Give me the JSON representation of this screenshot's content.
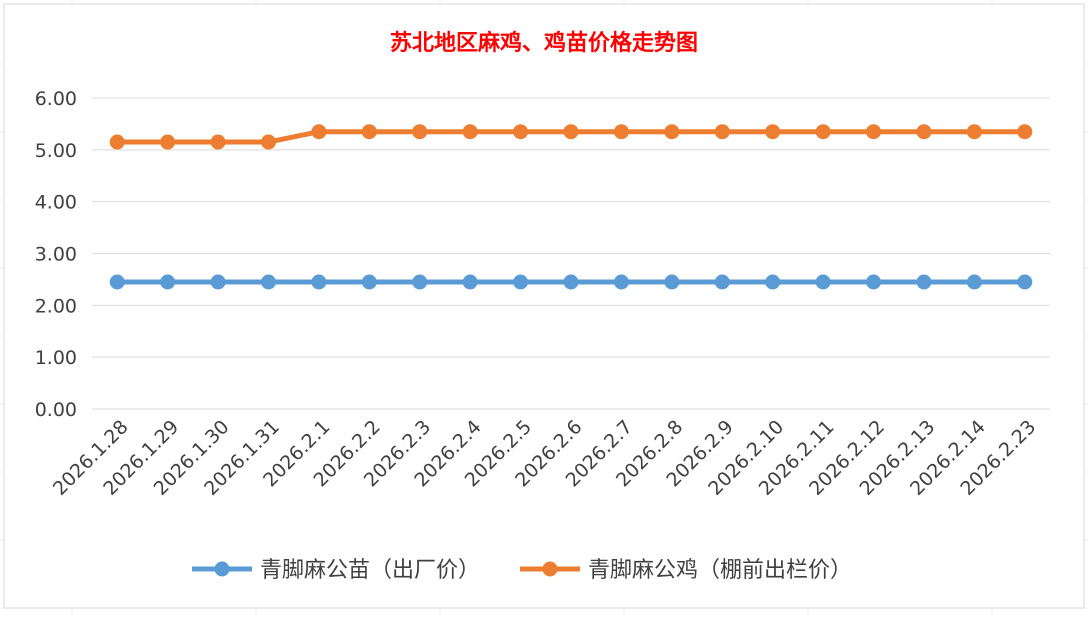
{
  "chart_data": {
    "type": "line",
    "title": "苏北地区麻鸡、鸡苗价格走势图",
    "xlabel": "",
    "ylabel": "",
    "categories": [
      "2026.1.28",
      "2026.1.29",
      "2026.1.30",
      "2026.1.31",
      "2026.2.1",
      "2026.2.2",
      "2026.2.3",
      "2026.2.4",
      "2026.2.5",
      "2026.2.6",
      "2026.2.7",
      "2026.2.8",
      "2026.2.9",
      "2026.2.10",
      "2026.2.11",
      "2026.2.12",
      "2026.2.13",
      "2026.2.14",
      "2026.2.23"
    ],
    "ylim": [
      0,
      6
    ],
    "yticks": [
      "0.00",
      "1.00",
      "2.00",
      "3.00",
      "4.00",
      "5.00",
      "6.00"
    ],
    "grid": true,
    "legend_position": "bottom",
    "title_color": "#FF0000",
    "series": [
      {
        "name": "青脚麻公苗（出厂价）",
        "color": "#5B9BD5",
        "values": [
          2.45,
          2.45,
          2.45,
          2.45,
          2.45,
          2.45,
          2.45,
          2.45,
          2.45,
          2.45,
          2.45,
          2.45,
          2.45,
          2.45,
          2.45,
          2.45,
          2.45,
          2.45,
          2.45
        ]
      },
      {
        "name": "青脚麻公鸡（棚前出栏价）",
        "color": "#ED7D31",
        "values": [
          5.15,
          5.15,
          5.15,
          5.15,
          5.35,
          5.35,
          5.35,
          5.35,
          5.35,
          5.35,
          5.35,
          5.35,
          5.35,
          5.35,
          5.35,
          5.35,
          5.35,
          5.35,
          5.35
        ]
      }
    ]
  }
}
